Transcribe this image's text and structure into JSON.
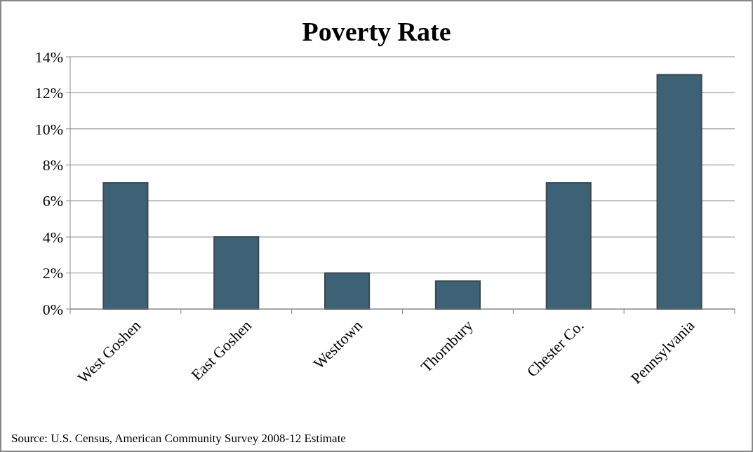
{
  "chart_data": {
    "type": "bar",
    "title": "Poverty Rate",
    "categories": [
      "West Goshen",
      "East Goshen",
      "Westtown",
      "Thornbury",
      "Chester Co.",
      "Pennsylvania"
    ],
    "values": [
      7,
      4,
      2,
      1.55,
      7,
      13
    ],
    "color": "#3d6275",
    "ylim": [
      0,
      14
    ],
    "yticks": [
      {
        "value": 0,
        "label": "0%"
      },
      {
        "value": 2,
        "label": "2%"
      },
      {
        "value": 4,
        "label": "4%"
      },
      {
        "value": 6,
        "label": "6%"
      },
      {
        "value": 8,
        "label": "8%"
      },
      {
        "value": 10,
        "label": "10%"
      },
      {
        "value": 12,
        "label": "12%"
      },
      {
        "value": 14,
        "label": "14%"
      }
    ],
    "grid": "y",
    "annotations": [
      "Source: U.S. Census, American Community Survey 2008-12 Estimate"
    ]
  }
}
